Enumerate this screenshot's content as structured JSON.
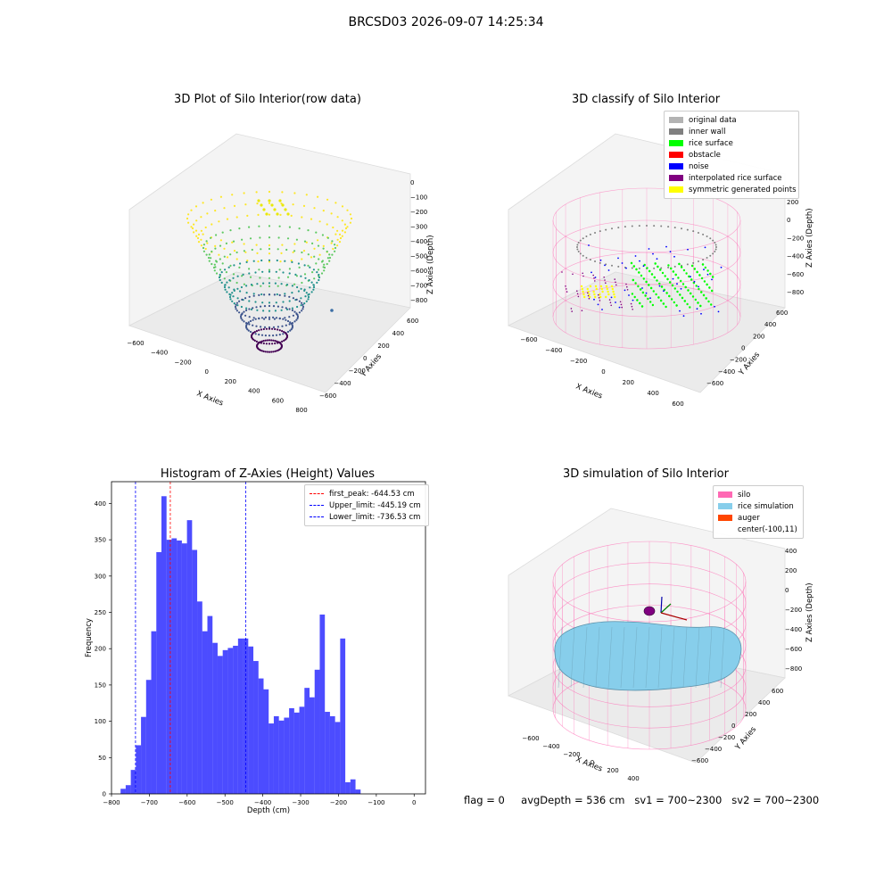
{
  "figure_title": "BRCSD03 2026-09-07 14:25:34",
  "footer": {
    "flag": "flag = 0",
    "avg_depth": "avgDepth = 536 cm",
    "sv1": "sv1 = 700~2300",
    "sv2": "sv2 = 700~2300"
  },
  "chart_data": [
    {
      "type": "scatter",
      "panel": "row-data",
      "title": "3D Plot of Silo Interior(row data)",
      "xlabel": "X Axies",
      "ylabel": "Y Axies",
      "zlabel": "Z Axies (Depth)",
      "x_ticks": [
        "−600",
        "−400",
        "−200",
        "0",
        "200",
        "400",
        "600",
        "800"
      ],
      "y_ticks": [
        "−600",
        "−400",
        "−200",
        "0",
        "200",
        "400",
        "600"
      ],
      "z_ticks": [
        "0",
        "−100",
        "−200",
        "−300",
        "−400",
        "−500",
        "−600",
        "−700",
        "−800"
      ],
      "colormap": "viridis"
    },
    {
      "type": "scatter",
      "panel": "classify",
      "title": "3D classify of Silo Interior",
      "xlabel": "X Axies",
      "ylabel": "Y Axies",
      "zlabel": "Z Axies (Depth)",
      "x_ticks": [
        "−600",
        "−400",
        "−200",
        "0",
        "200",
        "400",
        "600"
      ],
      "y_ticks": [
        "−600",
        "−400",
        "−200",
        "0",
        "200",
        "400",
        "600"
      ],
      "z_ticks": [
        "200",
        "0",
        "−200",
        "−400",
        "−600",
        "−800"
      ],
      "legend_position": "top-right",
      "legend": [
        {
          "label": "original data",
          "color": "#b3b3b3"
        },
        {
          "label": "inner wall",
          "color": "#808080"
        },
        {
          "label": "rice surface",
          "color": "#00ff00"
        },
        {
          "label": "obstacle",
          "color": "#ff0000"
        },
        {
          "label": "noise",
          "color": "#0000ff"
        },
        {
          "label": "interpolated rice surface",
          "color": "#800080"
        },
        {
          "label": "symmetric generated points",
          "color": "#ffff00"
        }
      ],
      "silo_wire_color": "#ff69b4"
    },
    {
      "type": "bar",
      "panel": "histogram",
      "title": "Histogram of Z-Axies (Height) Values",
      "xlabel": "Depth (cm)",
      "ylabel": "Frequency",
      "xlim": [
        -800,
        30
      ],
      "ylim": [
        0,
        430
      ],
      "x_ticks": [
        "−800",
        "−700",
        "−600",
        "−500",
        "−400",
        "−300",
        "−200",
        "−100",
        "0"
      ],
      "y_ticks": [
        "0",
        "50",
        "100",
        "150",
        "200",
        "250",
        "300",
        "350",
        "400"
      ],
      "bar_color": "#0000ff",
      "bin_start": -776,
      "bin_width": 13.5,
      "counts": [
        7,
        12,
        33,
        67,
        106,
        157,
        224,
        333,
        410,
        350,
        352,
        349,
        345,
        377,
        336,
        265,
        224,
        245,
        208,
        190,
        198,
        201,
        204,
        214,
        214,
        203,
        183,
        159,
        144,
        97,
        107,
        101,
        105,
        118,
        112,
        120,
        146,
        133,
        171,
        247,
        113,
        107,
        99,
        214,
        16,
        20,
        6
      ],
      "lines": [
        {
          "label": "first_peak: -644.53 cm",
          "x": -644.53,
          "color": "#ff0000"
        },
        {
          "label": "Upper_limit: -445.19 cm",
          "x": -445.19,
          "color": "#0000ff"
        },
        {
          "label": "Lower_limit: -736.53 cm",
          "x": -736.53,
          "color": "#0000ff"
        }
      ],
      "legend_position": "top-right"
    },
    {
      "type": "surface",
      "panel": "simulation",
      "title": "3D simulation of Silo Interior",
      "xlabel": "X Axies",
      "ylabel": "Y Axies",
      "zlabel": "Z Axies (Depth)",
      "x_ticks": [
        "−600",
        "−400",
        "−200",
        "0",
        "200",
        "400"
      ],
      "y_ticks": [
        "−600",
        "−400",
        "−200",
        "0",
        "200",
        "400",
        "600"
      ],
      "z_ticks": [
        "400",
        "200",
        "0",
        "−200",
        "−400",
        "−600",
        "−800"
      ],
      "legend_position": "top-right",
      "legend": [
        {
          "label": "silo",
          "color": "#ff69b4"
        },
        {
          "label": "rice simulation",
          "color": "#87ceeb"
        },
        {
          "label": "auger",
          "color": "#ff4500"
        },
        {
          "label": "center(-100,11)",
          "color": ""
        }
      ]
    }
  ]
}
